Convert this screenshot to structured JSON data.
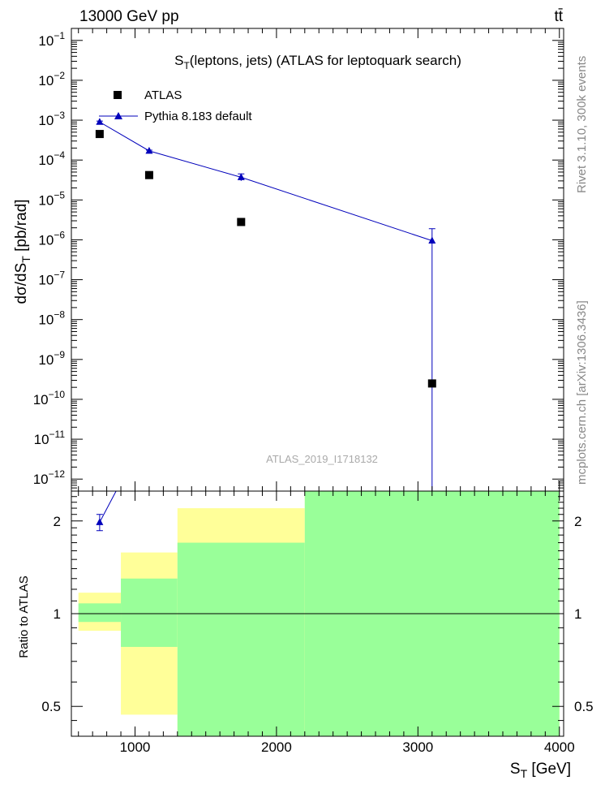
{
  "header": {
    "energy_label": "13000 GeV pp",
    "process_label": "tt̄"
  },
  "side_text": {
    "rivet": "Rivet 3.1.10,  300k events",
    "mcplots": "mcplots.cern.ch [arXiv:1306.3436]"
  },
  "chart_data": [
    {
      "type": "scatter",
      "panel": "main",
      "title": "S_T(leptons, jets) (ATLAS for leptoquark search)",
      "title_main": "S",
      "title_sub": "T",
      "title_rest": "(leptons, jets) (ATLAS for leptoquark search)",
      "ylabel": "dσ/dS_T [pb/rad]",
      "ylabel_main": "dσ/dS",
      "ylabel_sub": "T",
      "ylabel_rest": " [pb/rad]",
      "yscale": "log",
      "xlim": [
        550,
        4030
      ],
      "ylim": [
        5e-13,
        0.2
      ],
      "analysis_id": "ATLAS_2019_I1718132",
      "legend_placement": "top-left",
      "y_ticks": [
        {
          "value": 0.1,
          "mantissa": "10",
          "exp": "−1"
        },
        {
          "value": 0.01,
          "mantissa": "10",
          "exp": "−2"
        },
        {
          "value": 0.001,
          "mantissa": "10",
          "exp": "−3"
        },
        {
          "value": 0.0001,
          "mantissa": "10",
          "exp": "−4"
        },
        {
          "value": 1e-05,
          "mantissa": "10",
          "exp": "−5"
        },
        {
          "value": 1e-06,
          "mantissa": "10",
          "exp": "−6"
        },
        {
          "value": 1e-07,
          "mantissa": "10",
          "exp": "−7"
        },
        {
          "value": 1e-08,
          "mantissa": "10",
          "exp": "−8"
        },
        {
          "value": 1e-09,
          "mantissa": "10",
          "exp": "−9"
        },
        {
          "value": 1e-10,
          "mantissa": "10",
          "exp": "−10"
        },
        {
          "value": 1e-11,
          "mantissa": "10",
          "exp": "−11"
        },
        {
          "value": 1e-12,
          "mantissa": "10",
          "exp": "−12"
        }
      ],
      "series": [
        {
          "name": "ATLAS",
          "color": "#000000",
          "marker": "square",
          "points": [
            {
              "x": 750,
              "y": 0.00045
            },
            {
              "x": 1100,
              "y": 4.2e-05
            },
            {
              "x": 1750,
              "y": 2.8e-06
            },
            {
              "x": 3100,
              "y": 2.5e-10
            }
          ]
        },
        {
          "name": "Pythia 8.183 default",
          "color": "#0000bb",
          "marker": "triangle",
          "points": [
            {
              "x": 750,
              "y": 0.0009,
              "ylo": 0.00085,
              "yhi": 0.00095
            },
            {
              "x": 1100,
              "y": 0.00017,
              "ylo": 0.000163,
              "yhi": 0.000177
            },
            {
              "x": 1750,
              "y": 3.7e-05,
              "ylo": 3e-05,
              "yhi": 4.5e-05
            },
            {
              "x": 3100,
              "y": 9.5e-07,
              "ylo": 5e-13,
              "yhi": 1.9e-06
            }
          ]
        }
      ]
    },
    {
      "type": "area",
      "panel": "ratio",
      "ylabel": "Ratio to ATLAS",
      "xlabel": "S_T [GeV]",
      "xlabel_main": "S",
      "xlabel_sub": "T",
      "xlabel_rest": " [GeV]",
      "yscale": "log",
      "xlim": [
        550,
        4030
      ],
      "ylim": [
        0.4,
        2.5
      ],
      "x_ticks": [
        1000,
        2000,
        3000,
        4000
      ],
      "y_ticks": [
        0.5,
        1,
        2
      ],
      "reference_line": 1,
      "bands": [
        {
          "x0": 600,
          "x1": 900,
          "total_lo": 0.88,
          "total_hi": 1.17,
          "stat_lo": 0.94,
          "stat_hi": 1.08
        },
        {
          "x0": 900,
          "x1": 1300,
          "total_lo": 0.47,
          "total_hi": 1.58,
          "stat_lo": 0.78,
          "stat_hi": 1.3
        },
        {
          "x0": 1300,
          "x1": 2200,
          "total_lo": 0.2,
          "total_hi": 2.2,
          "stat_lo": 0.2,
          "stat_hi": 1.7
        },
        {
          "x0": 2200,
          "x1": 4000,
          "total_lo": 0.2,
          "total_hi": 3.0,
          "stat_lo": 0.2,
          "stat_hi": 3.0
        }
      ],
      "band_colors": {
        "total": "#ffff99",
        "stat": "#99ff99"
      },
      "series": [
        {
          "name": "Pythia 8.183 default",
          "color": "#0000bb",
          "points": [
            {
              "x": 750,
              "y": 1.98,
              "ylo": 1.86,
              "yhi": 2.1
            },
            {
              "x": 1100,
              "y": 4.0
            }
          ]
        }
      ]
    }
  ]
}
